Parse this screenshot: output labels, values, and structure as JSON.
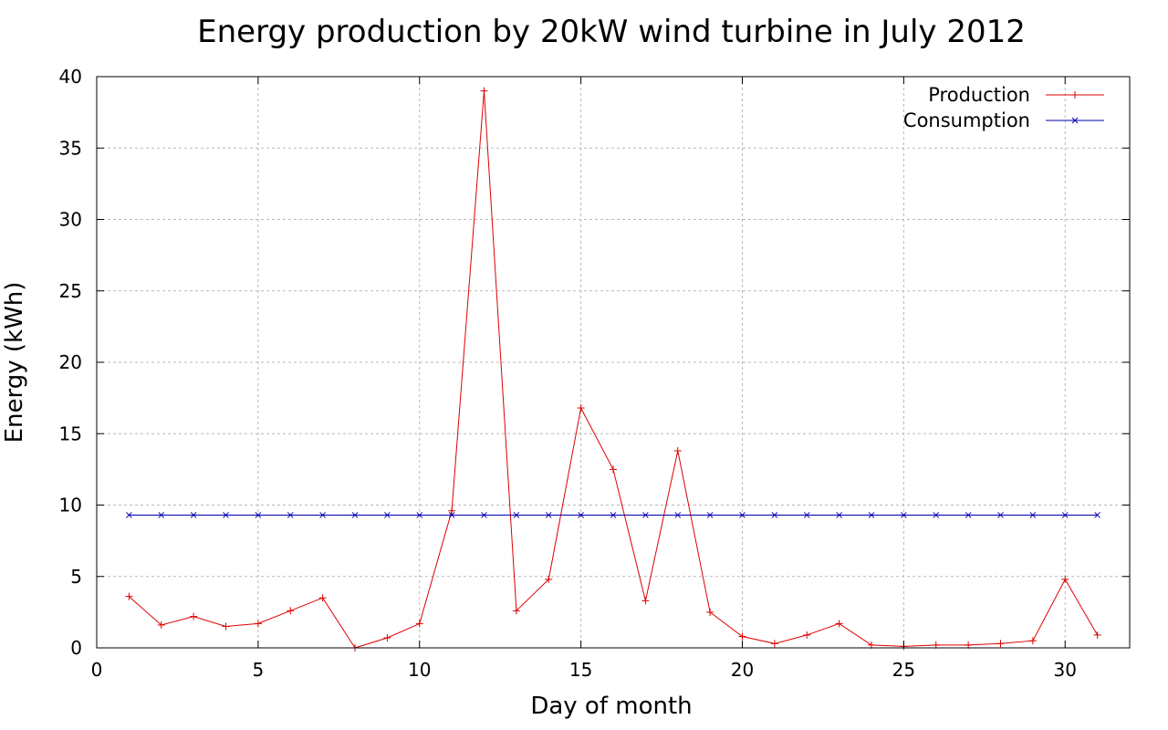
{
  "chart_data": {
    "type": "line",
    "title": "Energy production by 20kW wind turbine in July 2012",
    "xlabel": "Day of month",
    "ylabel": "Energy (kWh)",
    "xlim": [
      0,
      32
    ],
    "ylim": [
      0,
      40
    ],
    "xticks": [
      0,
      5,
      10,
      15,
      20,
      25,
      30
    ],
    "yticks": [
      0,
      5,
      10,
      15,
      20,
      25,
      30,
      35,
      40
    ],
    "grid": true,
    "legend_position": "top-right",
    "x": [
      1,
      2,
      3,
      4,
      5,
      6,
      7,
      8,
      9,
      10,
      11,
      12,
      13,
      14,
      15,
      16,
      17,
      18,
      19,
      20,
      21,
      22,
      23,
      24,
      25,
      26,
      27,
      28,
      29,
      30,
      31
    ],
    "series": [
      {
        "name": "Production",
        "color": "#dd0000",
        "marker": "plus",
        "values": [
          3.6,
          1.6,
          2.2,
          1.5,
          1.7,
          2.6,
          3.5,
          0.0,
          0.7,
          1.7,
          9.6,
          39.0,
          2.6,
          4.8,
          16.8,
          12.5,
          3.3,
          13.8,
          2.5,
          0.8,
          0.3,
          0.9,
          1.7,
          0.2,
          0.1,
          0.2,
          0.2,
          0.3,
          0.5,
          4.8,
          0.9
        ]
      },
      {
        "name": "Consumption",
        "color": "#0000aa",
        "marker": "cross",
        "values": [
          9.3,
          9.3,
          9.3,
          9.3,
          9.3,
          9.3,
          9.3,
          9.3,
          9.3,
          9.3,
          9.3,
          9.3,
          9.3,
          9.3,
          9.3,
          9.3,
          9.3,
          9.3,
          9.3,
          9.3,
          9.3,
          9.3,
          9.3,
          9.3,
          9.3,
          9.3,
          9.3,
          9.3,
          9.3,
          9.3,
          9.3
        ]
      }
    ]
  }
}
